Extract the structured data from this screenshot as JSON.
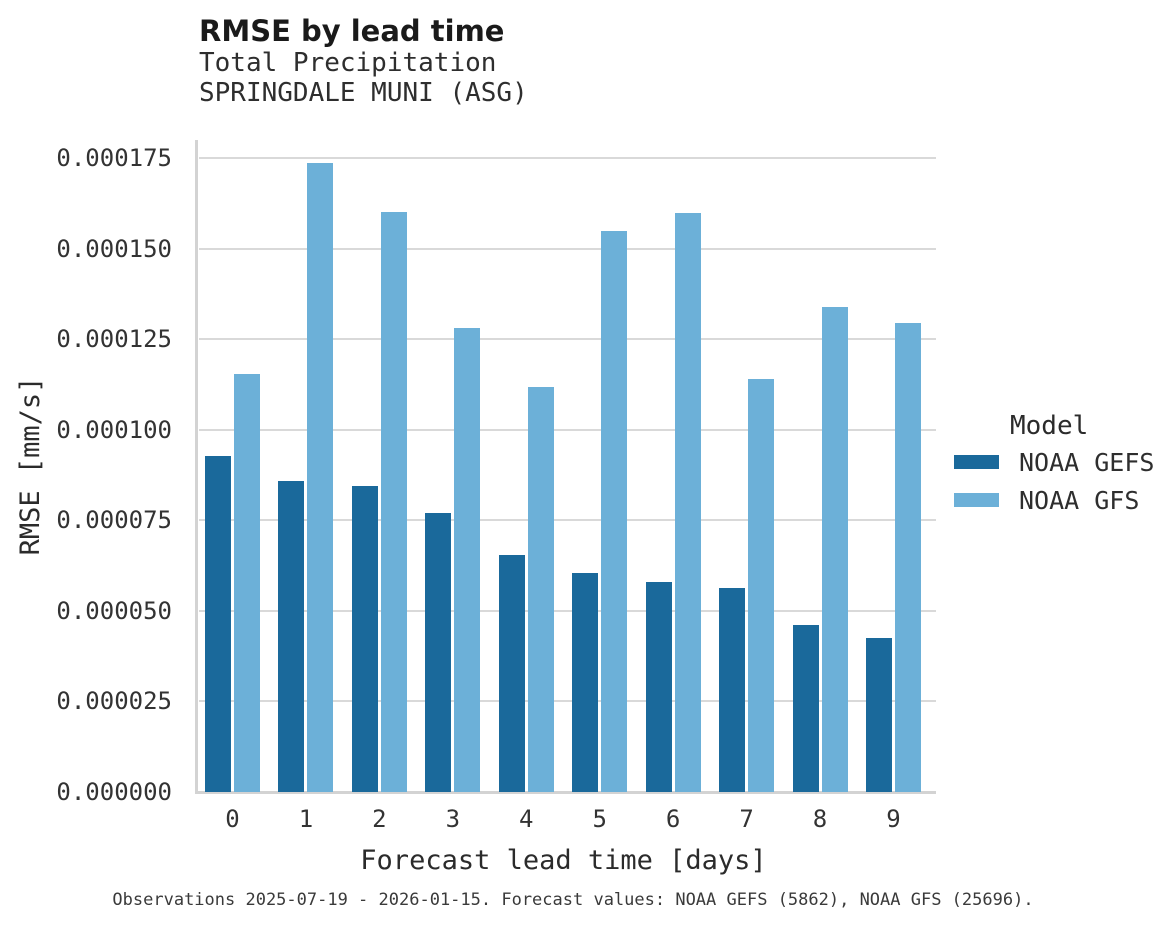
{
  "title": "RMSE by lead time",
  "subtitle": "Total Precipitation",
  "station": "SPRINGDALE MUNI (ASG)",
  "caption": "Observations 2025-07-19 - 2026-01-15. Forecast values: NOAA GEFS (5862), NOAA GFS (25696).",
  "colors": {
    "gefs_bar": "#1a699b",
    "gfs_bar": "#6cb0d8",
    "gridline": "#d9d9d9",
    "axis_line": "#d3d3d3",
    "tick_text": "#333333",
    "title_text": "#1a1a1a"
  },
  "legend": {
    "title": "Model",
    "entries": [
      {
        "label": "NOAA GEFS",
        "color": "#1a699b"
      },
      {
        "label": "NOAA GFS",
        "color": "#6cb0d8"
      }
    ]
  },
  "chart_data": {
    "type": "bar",
    "title": "RMSE by lead time",
    "subtitle": [
      "Total Precipitation",
      "SPRINGDALE MUNI (ASG)"
    ],
    "xlabel": "Forecast lead time [days]",
    "ylabel": "RMSE [mm/s]",
    "caption": "Observations 2025-07-19 - 2026-01-15. Forecast values: NOAA GEFS (5862), NOAA GFS (25696).",
    "categories": [
      0,
      1,
      2,
      3,
      4,
      5,
      6,
      7,
      8,
      9
    ],
    "series": [
      {
        "name": "NOAA GEFS",
        "color": "#1a699b",
        "values": [
          9.28e-05,
          8.59e-05,
          8.45e-05,
          7.7e-05,
          6.53e-05,
          6.04e-05,
          5.81e-05,
          5.62e-05,
          4.61e-05,
          4.24e-05
        ]
      },
      {
        "name": "NOAA GFS",
        "color": "#6cb0d8",
        "values": [
          0.0001155,
          0.0001737,
          0.00016,
          0.000128,
          0.0001119,
          0.0001549,
          0.0001598,
          0.000114,
          0.000134,
          0.0001295
        ]
      }
    ],
    "ylim": [
      0,
      0.00018
    ],
    "yticks": [
      0.0,
      2.5e-05,
      5e-05,
      7.5e-05,
      0.0001,
      0.000125,
      0.00015,
      0.000175
    ],
    "ytick_labels": [
      "0.000000",
      "0.000025",
      "0.000050",
      "0.000075",
      "0.000100",
      "0.000125",
      "0.000150",
      "0.000175"
    ],
    "grid": true,
    "legend_title": "Model",
    "legend_position": "right"
  }
}
